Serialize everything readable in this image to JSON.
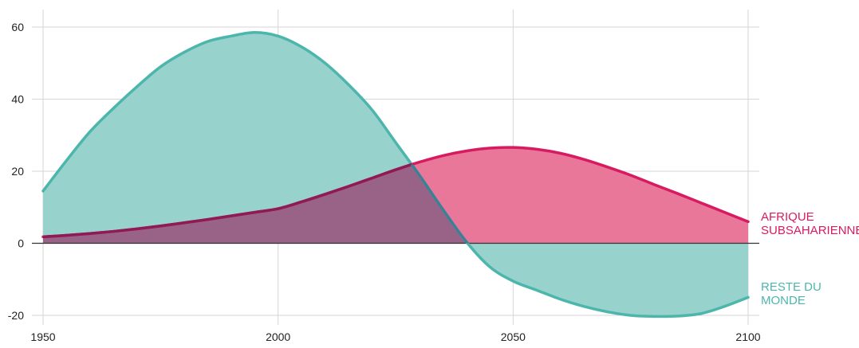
{
  "chart_data": {
    "type": "area",
    "x": [
      1950,
      1955,
      1960,
      1965,
      1970,
      1975,
      1980,
      1985,
      1990,
      1995,
      2000,
      2005,
      2010,
      2015,
      2020,
      2025,
      2030,
      2035,
      2040,
      2045,
      2050,
      2055,
      2060,
      2065,
      2070,
      2075,
      2080,
      2085,
      2090,
      2095,
      2100
    ],
    "series": [
      {
        "name": "AFRIQUE SUBSAHARIENNE",
        "color": "#d81b60",
        "fill": "#e8779a",
        "values": [
          1.8,
          2.2,
          2.7,
          3.3,
          4.0,
          4.8,
          5.7,
          6.6,
          7.6,
          8.6,
          9.6,
          11.5,
          13.6,
          15.8,
          18.1,
          20.4,
          22.5,
          24.3,
          25.6,
          26.4,
          26.6,
          26.1,
          25.0,
          23.3,
          21.2,
          18.9,
          16.3,
          13.8,
          11.2,
          8.6,
          6.0
        ]
      },
      {
        "name": "RESTE DU MONDE",
        "color": "#4db6ac",
        "fill": "#98d2cc",
        "values": [
          14.5,
          23.0,
          31.0,
          37.5,
          43.5,
          49.0,
          53.0,
          56.0,
          57.5,
          58.5,
          57.5,
          54.5,
          50.0,
          44.0,
          37.0,
          28.0,
          19.0,
          9.5,
          0.5,
          -6.5,
          -10.5,
          -13.0,
          -15.5,
          -17.5,
          -19.0,
          -20.0,
          -20.3,
          -20.2,
          -19.5,
          -17.5,
          -15.0
        ]
      }
    ],
    "xlim": [
      1950,
      2100
    ],
    "ylim": [
      -20,
      60
    ],
    "x_ticks": [
      "1950",
      "2000",
      "2050",
      "2100"
    ],
    "y_ticks": [
      "60",
      "40",
      "20",
      "0",
      "-20"
    ],
    "overlap_color": "#986386",
    "grid": true
  }
}
